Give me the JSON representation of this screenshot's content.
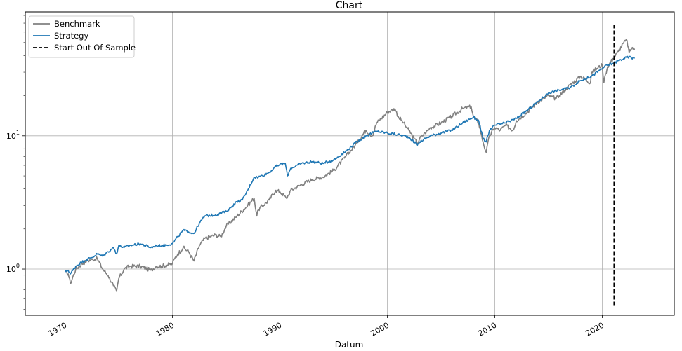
{
  "chart_data": {
    "type": "line",
    "title": "Chart",
    "xlabel": "Datum",
    "ylabel": "",
    "yscale": "log",
    "xlim": [
      1966.3,
      2026.7
    ],
    "ylim": [
      0.45,
      85
    ],
    "grid": true,
    "legend_position": "top-left",
    "x_ticks": [
      1970,
      1980,
      1990,
      2000,
      2010,
      2020
    ],
    "x_tick_labels": [
      "1970",
      "1980",
      "1990",
      "2000",
      "2010",
      "2020"
    ],
    "y_ticks": [
      1,
      10
    ],
    "y_tick_label_base": "10",
    "y_tick_label_exponents": [
      "0",
      "1"
    ],
    "series": [
      {
        "name": "Benchmark",
        "color": "#808080",
        "style": "solid",
        "x": [
          1970.0,
          1970.3,
          1970.5,
          1971.0,
          1971.5,
          1972.0,
          1972.5,
          1973.0,
          1973.5,
          1974.0,
          1974.5,
          1974.8,
          1975.0,
          1975.5,
          1976.0,
          1977.0,
          1978.0,
          1978.5,
          1979.0,
          1980.0,
          1980.2,
          1980.5,
          1981.0,
          1981.5,
          1982.0,
          1982.5,
          1983.0,
          1984.0,
          1984.5,
          1985.0,
          1986.0,
          1987.0,
          1987.6,
          1987.85,
          1988.0,
          1989.0,
          1989.6,
          1990.0,
          1990.6,
          1990.8,
          1991.0,
          1992.0,
          1993.0,
          1994.0,
          1995.0,
          1996.0,
          1997.0,
          1998.0,
          1998.6,
          1999.0,
          2000.0,
          2000.7,
          2001.0,
          2001.5,
          2001.8,
          2002.0,
          2002.5,
          2002.8,
          2003.0,
          2003.5,
          2004.0,
          2005.0,
          2006.0,
          2007.0,
          2007.8,
          2008.0,
          2008.5,
          2008.9,
          2009.2,
          2009.5,
          2010.0,
          2010.5,
          2011.0,
          2011.7,
          2012.0,
          2013.0,
          2014.0,
          2015.0,
          2015.7,
          2016.0,
          2016.5,
          2017.0,
          2018.0,
          2018.9,
          2019.0,
          2019.5,
          2020.0,
          2020.15,
          2020.3,
          2020.5,
          2021.0,
          2021.5,
          2022.0,
          2022.3,
          2022.5,
          2022.8,
          2023.0
        ],
        "y": [
          0.95,
          0.92,
          0.78,
          1.0,
          1.08,
          1.15,
          1.18,
          1.2,
          1.0,
          0.9,
          0.75,
          0.68,
          0.85,
          1.0,
          1.05,
          1.05,
          0.98,
          1.05,
          1.05,
          1.1,
          1.2,
          1.3,
          1.45,
          1.35,
          1.15,
          1.5,
          1.7,
          1.8,
          1.75,
          2.1,
          2.5,
          3.0,
          3.4,
          2.5,
          2.8,
          3.3,
          3.9,
          3.8,
          3.4,
          3.6,
          3.9,
          4.3,
          4.7,
          4.9,
          5.5,
          6.8,
          8.5,
          11.0,
          10.0,
          12.5,
          15.0,
          16.0,
          14.0,
          12.5,
          11.5,
          11.0,
          9.5,
          8.8,
          9.5,
          10.5,
          11.5,
          12.5,
          14.0,
          16.0,
          16.5,
          14.0,
          12.5,
          9.0,
          7.5,
          10.0,
          11.5,
          11.0,
          12.0,
          11.0,
          13.0,
          15.0,
          18.0,
          20.0,
          19.0,
          20.0,
          22.0,
          24.0,
          28.0,
          25.0,
          30.0,
          32.0,
          34.0,
          25.0,
          29.0,
          33.0,
          38.0,
          43.0,
          50.0,
          52.0,
          42.0,
          46.0,
          44.0
        ]
      },
      {
        "name": "Strategy",
        "color": "#1f77b4",
        "style": "solid",
        "x": [
          1970.0,
          1970.3,
          1970.5,
          1971.0,
          1971.5,
          1972.0,
          1972.5,
          1973.0,
          1973.5,
          1974.0,
          1974.5,
          1974.8,
          1975.0,
          1975.5,
          1976.0,
          1977.0,
          1978.0,
          1978.5,
          1979.0,
          1980.0,
          1980.5,
          1981.0,
          1981.5,
          1982.0,
          1982.5,
          1983.0,
          1984.0,
          1985.0,
          1986.0,
          1986.5,
          1987.0,
          1987.6,
          1988.0,
          1989.0,
          1989.5,
          1990.0,
          1990.5,
          1990.7,
          1991.0,
          1992.0,
          1993.0,
          1994.0,
          1995.0,
          1996.0,
          1997.0,
          1998.0,
          1999.0,
          2000.0,
          2001.0,
          2002.0,
          2002.8,
          2003.0,
          2004.0,
          2005.0,
          2006.0,
          2007.0,
          2008.0,
          2008.5,
          2008.9,
          2009.2,
          2009.5,
          2010.0,
          2011.0,
          2012.0,
          2013.0,
          2014.0,
          2015.0,
          2016.0,
          2017.0,
          2018.0,
          2019.0,
          2020.0,
          2020.2,
          2021.0,
          2022.0,
          2022.5,
          2023.0
        ],
        "y": [
          0.95,
          0.98,
          0.92,
          1.05,
          1.12,
          1.18,
          1.22,
          1.3,
          1.25,
          1.35,
          1.45,
          1.3,
          1.5,
          1.45,
          1.5,
          1.55,
          1.45,
          1.5,
          1.5,
          1.55,
          1.75,
          1.95,
          1.9,
          1.85,
          2.2,
          2.5,
          2.55,
          2.7,
          3.2,
          3.3,
          3.9,
          4.9,
          4.9,
          5.3,
          5.8,
          6.1,
          6.2,
          5.0,
          5.7,
          6.2,
          6.4,
          6.2,
          6.6,
          7.5,
          8.8,
          10.0,
          10.8,
          10.5,
          10.2,
          9.8,
          8.5,
          9.0,
          10.0,
          10.5,
          11.0,
          12.5,
          13.8,
          13.0,
          9.5,
          9.0,
          11.0,
          12.0,
          12.5,
          13.5,
          15.5,
          18.0,
          21.0,
          22.0,
          23.0,
          26.0,
          28.0,
          32.0,
          33.0,
          35.0,
          38.0,
          39.0,
          38.0
        ]
      },
      {
        "name": "Start Out Of Sample",
        "color": "#000000",
        "style": "dashed",
        "x": [
          2021.1,
          2021.1
        ],
        "y": [
          0.53,
          68.0
        ]
      }
    ]
  }
}
